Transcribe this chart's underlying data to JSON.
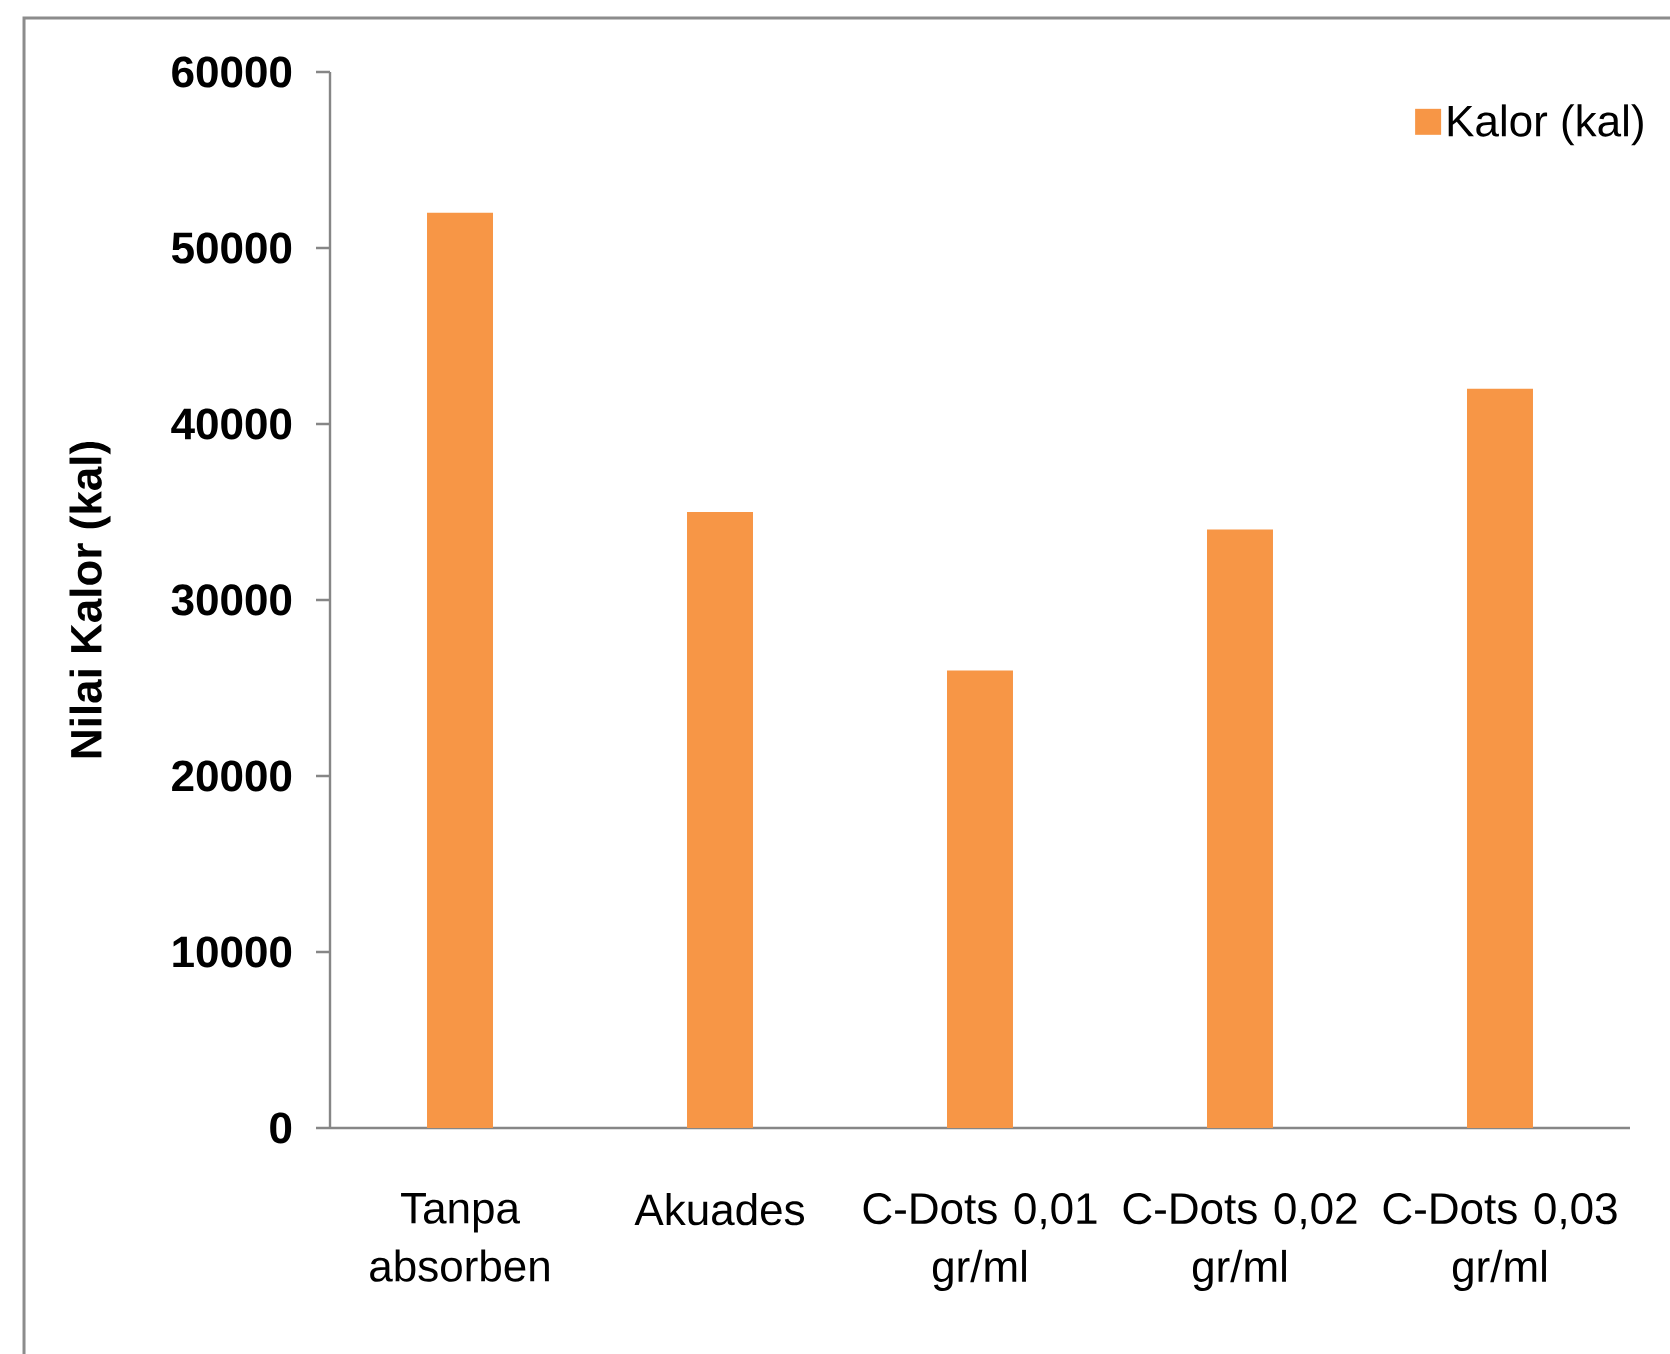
{
  "chart_data": {
    "type": "bar",
    "ylabel": "Nilai Kalor (kal)",
    "categories": [
      "Tanpa absorben",
      "Akuades",
      "C-Dots 0,01 gr/ml",
      "C-Dots 0,02 gr/ml",
      "C-Dots 0,03 gr/ml"
    ],
    "series": [
      {
        "name": "Kalor (kal)",
        "color": "#f79646",
        "values": [
          52000,
          35000,
          26000,
          34000,
          42000
        ]
      }
    ],
    "ylim": [
      0,
      60000
    ],
    "yticks": [
      0,
      10000,
      20000,
      30000,
      40000,
      50000,
      60000
    ],
    "legend": "top right"
  }
}
